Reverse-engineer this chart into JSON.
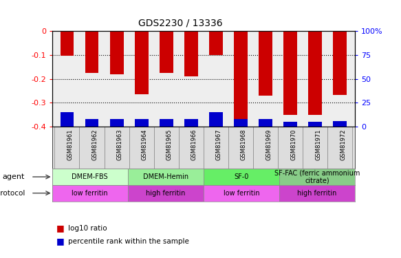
{
  "title": "GDS2230 / 13336",
  "samples": [
    "GSM81961",
    "GSM81962",
    "GSM81963",
    "GSM81964",
    "GSM81965",
    "GSM81966",
    "GSM81967",
    "GSM81968",
    "GSM81969",
    "GSM81970",
    "GSM81971",
    "GSM81972"
  ],
  "log10_ratio": [
    -0.105,
    -0.175,
    -0.18,
    -0.265,
    -0.175,
    -0.19,
    -0.101,
    -0.37,
    -0.27,
    -0.35,
    -0.35,
    -0.268
  ],
  "percentile_rank_pct": [
    15,
    8,
    8,
    8,
    8,
    8,
    15,
    8,
    8,
    5,
    5,
    6
  ],
  "ylim": [
    -0.4,
    0.0
  ],
  "ytick_vals": [
    0.0,
    -0.1,
    -0.2,
    -0.3,
    -0.4
  ],
  "y2_ticks": [
    0,
    25,
    50,
    75,
    100
  ],
  "bar_color": "#cc0000",
  "pct_color": "#0000cc",
  "plot_bg": "#eeeeee",
  "agent_groups": [
    {
      "label": "DMEM-FBS",
      "start": 0,
      "end": 3,
      "color": "#ccffcc"
    },
    {
      "label": "DMEM-Hemin",
      "start": 3,
      "end": 6,
      "color": "#99ee99"
    },
    {
      "label": "SF-0",
      "start": 6,
      "end": 9,
      "color": "#66ee66"
    },
    {
      "label": "SF-FAC (ferric ammonium\ncitrate)",
      "start": 9,
      "end": 12,
      "color": "#88cc88"
    }
  ],
  "protocol_groups": [
    {
      "label": "low ferritin",
      "start": 0,
      "end": 3,
      "color": "#ee66ee"
    },
    {
      "label": "high ferritin",
      "start": 3,
      "end": 6,
      "color": "#cc44cc"
    },
    {
      "label": "low ferritin",
      "start": 6,
      "end": 9,
      "color": "#ee66ee"
    },
    {
      "label": "high ferritin",
      "start": 9,
      "end": 12,
      "color": "#cc44cc"
    }
  ],
  "legend": [
    {
      "label": "log10 ratio",
      "color": "#cc0000"
    },
    {
      "label": "percentile rank within the sample",
      "color": "#0000cc"
    }
  ]
}
